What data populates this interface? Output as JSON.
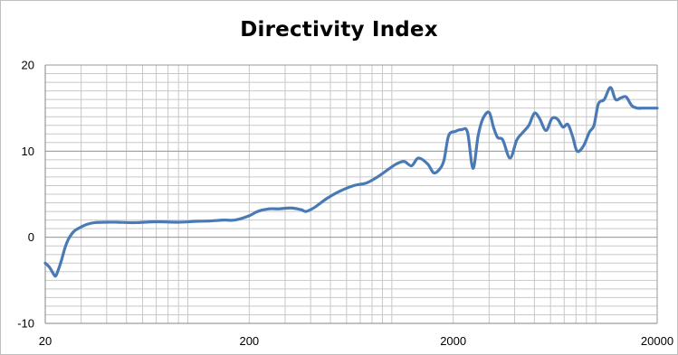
{
  "chart_data": {
    "type": "line",
    "title": "Directivity Index",
    "xlabel": "",
    "ylabel": "",
    "x_scale": "log",
    "xlim": [
      20,
      20000
    ],
    "ylim": [
      -10,
      20
    ],
    "x_ticks": [
      20,
      200,
      2000,
      20000
    ],
    "x_tick_labels": [
      "20",
      "200",
      "2000",
      "20000"
    ],
    "y_ticks": [
      -10,
      0,
      10,
      20
    ],
    "y_tick_labels": [
      "-10",
      "0",
      "10",
      "20"
    ],
    "grid": true,
    "legend": "none",
    "series": [
      {
        "color": "#4a7ab5",
        "x": [
          20,
          21,
          22,
          22.5,
          23,
          24,
          25,
          26,
          27,
          28,
          30,
          32,
          35,
          40,
          45,
          55,
          70,
          90,
          110,
          130,
          150,
          170,
          200,
          220,
          250,
          280,
          320,
          360,
          380,
          420,
          480,
          550,
          650,
          750,
          850,
          950,
          1050,
          1150,
          1250,
          1350,
          1500,
          1600,
          1700,
          1800,
          1900,
          2050,
          2200,
          2350,
          2500,
          2650,
          2800,
          3000,
          3150,
          3300,
          3500,
          3800,
          4100,
          4400,
          4700,
          5000,
          5300,
          5700,
          6100,
          6500,
          6900,
          7300,
          7700,
          8100,
          8700,
          9300,
          9800,
          10300,
          11000,
          11800,
          12500,
          13300,
          14100,
          15000,
          16000,
          17000,
          18000,
          19000,
          19500,
          20000
        ],
        "y": [
          -3.0,
          -3.5,
          -4.3,
          -4.5,
          -4.0,
          -2.7,
          -1.2,
          -0.2,
          0.4,
          0.8,
          1.2,
          1.5,
          1.7,
          1.75,
          1.75,
          1.7,
          1.8,
          1.75,
          1.85,
          1.9,
          2.0,
          2.0,
          2.5,
          3.0,
          3.3,
          3.3,
          3.4,
          3.2,
          3.0,
          3.5,
          4.5,
          5.3,
          6.0,
          6.3,
          7.0,
          7.8,
          8.5,
          8.8,
          8.3,
          9.2,
          8.5,
          7.5,
          7.8,
          8.9,
          11.8,
          12.3,
          12.5,
          12.2,
          8.0,
          11.8,
          13.8,
          14.5,
          12.8,
          11.6,
          11.3,
          9.2,
          11.3,
          12.2,
          13.0,
          14.4,
          13.8,
          12.4,
          13.8,
          13.7,
          12.8,
          13.1,
          11.7,
          10.0,
          10.6,
          12.2,
          13.0,
          15.5,
          16.0,
          17.4,
          16.0,
          16.2,
          16.3,
          15.3,
          15.0,
          15.0,
          15.0,
          15.0,
          15.0,
          15.0
        ]
      }
    ]
  }
}
